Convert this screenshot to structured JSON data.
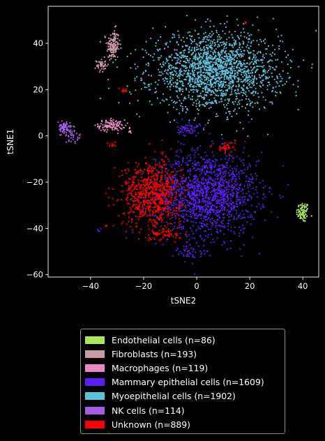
{
  "chart_data": {
    "type": "scatter",
    "title": "",
    "xlabel": "tSNE2",
    "ylabel": "tSNE1",
    "xlim": [
      -56,
      46
    ],
    "ylim": [
      -61,
      56
    ],
    "xticks": [
      -40,
      -20,
      0,
      20,
      40
    ],
    "yticks": [
      -60,
      -40,
      -20,
      0,
      20,
      40
    ],
    "xtick_labels": [
      "−40",
      "−20",
      "0",
      "20",
      "40"
    ],
    "ytick_labels": [
      "−60",
      "−40",
      "−20",
      "0",
      "20",
      "40"
    ],
    "grid": false,
    "legend_position": "below",
    "background": "#000000",
    "series": [
      {
        "name": "Endothelial cells (n=86)",
        "color": "#aee65a",
        "clusters": [
          {
            "cx": 40,
            "cy": -33,
            "sx": 1.2,
            "sy": 2.2,
            "n": 86
          }
        ]
      },
      {
        "name": "Fibroblasts (n=193)",
        "color": "#c89aa6",
        "clusters": [
          {
            "cx": -31.5,
            "cy": 39,
            "sx": 1.2,
            "sy": 3.5,
            "n": 150
          },
          {
            "cx": -36,
            "cy": 30.5,
            "sx": 0.9,
            "sy": 1.5,
            "n": 43
          }
        ]
      },
      {
        "name": "Macrophages (n=119)",
        "color": "#e58ac4",
        "clusters": [
          {
            "cx": -32,
            "cy": 4.5,
            "sx": 2.5,
            "sy": 1.2,
            "n": 110
          },
          {
            "cx": -25.5,
            "cy": 2.5,
            "sx": 0.6,
            "sy": 0.8,
            "n": 9
          }
        ]
      },
      {
        "name": "Mammary epithelial cells (n=1609)",
        "color": "#5c1ff0",
        "clusters": [
          {
            "cx": 4,
            "cy": -25,
            "sx": 9.5,
            "sy": 9,
            "n": 1500
          },
          {
            "cx": -3,
            "cy": 3,
            "sx": 2.2,
            "sy": 1.5,
            "n": 60
          },
          {
            "cx": -2,
            "cy": -50.5,
            "sx": 3,
            "sy": 1.6,
            "n": 45
          },
          {
            "cx": -36.5,
            "cy": -40.5,
            "sx": 0.4,
            "sy": 0.4,
            "n": 4
          }
        ]
      },
      {
        "name": "Myoepithelial cells (n=1902)",
        "color": "#5bc2dc",
        "clusters": [
          {
            "cx": 7,
            "cy": 28,
            "sx": 12,
            "sy": 8,
            "n": 1902
          }
        ]
      },
      {
        "name": "NK cells (n=114)",
        "color": "#a45ee6",
        "clusters": [
          {
            "cx": -50,
            "cy": 3.5,
            "sx": 1.2,
            "sy": 1.2,
            "n": 80
          },
          {
            "cx": -46.5,
            "cy": 0,
            "sx": 1.5,
            "sy": 1.5,
            "n": 34
          }
        ]
      },
      {
        "name": "Unknown (n=889)",
        "color": "#ff0000",
        "clusters": [
          {
            "cx": -17,
            "cy": -25,
            "sx": 5.5,
            "sy": 7,
            "n": 760
          },
          {
            "cx": -12,
            "cy": -42,
            "sx": 2.5,
            "sy": 1.6,
            "n": 60
          },
          {
            "cx": 11,
            "cy": -5,
            "sx": 1.8,
            "sy": 1.3,
            "n": 40
          },
          {
            "cx": -27,
            "cy": 19.5,
            "sx": 0.7,
            "sy": 0.5,
            "n": 12
          },
          {
            "cx": -32,
            "cy": -4,
            "sx": 0.8,
            "sy": 0.8,
            "n": 10
          },
          {
            "cx": 18.5,
            "cy": 49,
            "sx": 0.2,
            "sy": 0.5,
            "n": 4
          },
          {
            "cx": -34,
            "cy": -38.5,
            "sx": 0.5,
            "sy": 0.5,
            "n": 3
          }
        ]
      }
    ]
  }
}
